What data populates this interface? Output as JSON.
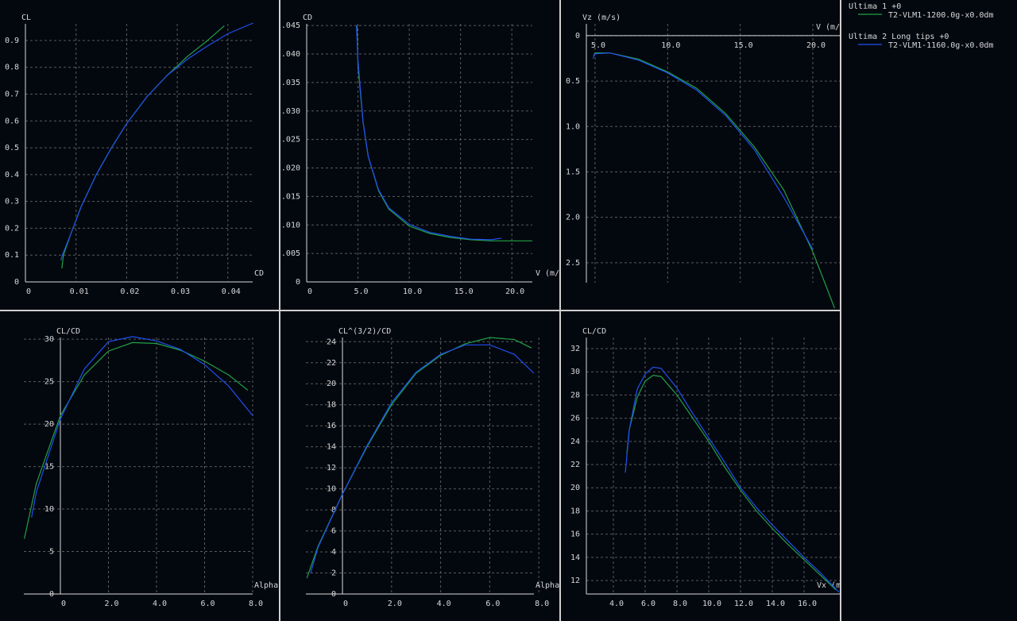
{
  "chart_data": [
    {
      "type": "line",
      "y_label": "CL",
      "x_label": "CD",
      "xlim": [
        0,
        0.0449
      ],
      "ylim": [
        0,
        0.962
      ],
      "xticks": [
        0,
        0.01,
        0.02,
        0.03,
        0.04
      ],
      "yticks": [
        0,
        0.1,
        0.2,
        0.3,
        0.4,
        0.5,
        0.6,
        0.7,
        0.8,
        0.9
      ],
      "grid": true,
      "series": [
        {
          "color": "#22a045",
          "x": [
            0.0072,
            0.0075,
            0.009,
            0.011,
            0.014,
            0.017,
            0.02,
            0.024,
            0.028,
            0.032,
            0.036,
            0.0393
          ],
          "values": [
            0.05,
            0.1,
            0.18,
            0.28,
            0.4,
            0.5,
            0.59,
            0.69,
            0.77,
            0.84,
            0.9,
            0.955
          ]
        },
        {
          "color": "#2050f0",
          "x": [
            0.007,
            0.0073,
            0.009,
            0.011,
            0.014,
            0.017,
            0.02,
            0.024,
            0.028,
            0.032,
            0.036,
            0.04,
            0.045
          ],
          "values": [
            0.08,
            0.1,
            0.18,
            0.28,
            0.4,
            0.5,
            0.59,
            0.69,
            0.77,
            0.83,
            0.88,
            0.925,
            0.965
          ]
        }
      ]
    },
    {
      "type": "line",
      "y_label": "CD",
      "x_label": "V (m/",
      "xlim": [
        0,
        22
      ],
      "ylim": [
        0,
        0.0453
      ],
      "xticks": [
        0,
        {
          "value": 5,
          "label": "5.0"
        },
        {
          "value": 10,
          "label": "10.0"
        },
        {
          "value": 15,
          "label": "15.0"
        },
        {
          "value": 20,
          "label": "20.0"
        }
      ],
      "yticks": [
        0,
        {
          "value": 0.005,
          "label": ".005"
        },
        {
          "value": 0.01,
          "label": ".010"
        },
        {
          "value": 0.015,
          "label": ".015"
        },
        {
          "value": 0.02,
          "label": ".020"
        },
        {
          "value": 0.025,
          "label": ".025"
        },
        {
          "value": 0.03,
          "label": ".030"
        },
        {
          "value": 0.035,
          "label": ".035"
        },
        {
          "value": 0.04,
          "label": ".040"
        },
        {
          "value": 0.045,
          "label": ".045"
        }
      ],
      "grid": true,
      "series": [
        {
          "color": "#22a045",
          "x": [
            4.9,
            5,
            5.5,
            6,
            7,
            8,
            10,
            12,
            14,
            16,
            18,
            20,
            22
          ],
          "values": [
            0.045,
            0.038,
            0.028,
            0.022,
            0.016,
            0.0128,
            0.0098,
            0.0085,
            0.0078,
            0.0074,
            0.0072,
            0.0072,
            0.0072
          ]
        },
        {
          "color": "#2050f0",
          "x": [
            4.85,
            5,
            5.5,
            6,
            7,
            8,
            10,
            12,
            14,
            16,
            18,
            19
          ],
          "values": [
            0.045,
            0.039,
            0.028,
            0.022,
            0.0162,
            0.013,
            0.0101,
            0.0087,
            0.008,
            0.0075,
            0.0074,
            0.0077
          ]
        }
      ]
    },
    {
      "type": "line",
      "y_label": "Vz (m/s)",
      "x_label": "V (m/",
      "xlim": [
        4.4,
        21.86
      ],
      "ylim": [
        2.72,
        -0.13
      ],
      "xticks": [
        {
          "value": 5,
          "label": "5.0"
        },
        {
          "value": 10,
          "label": "10.0"
        },
        {
          "value": 15,
          "label": "15.0"
        },
        {
          "value": 20,
          "label": "20.0"
        }
      ],
      "yticks": [
        0,
        0.5,
        {
          "value": 1,
          "label": "1.0"
        },
        1.5,
        {
          "value": 2,
          "label": "2.0"
        },
        2.5
      ],
      "grid": true,
      "series": [
        {
          "color": "#22a045",
          "x": [
            4.9,
            5,
            6,
            8,
            10,
            12,
            14,
            16,
            18,
            20,
            21.5
          ],
          "values": [
            0.22,
            0.19,
            0.19,
            0.26,
            0.4,
            0.58,
            0.86,
            1.23,
            1.7,
            2.38,
            3.0
          ]
        },
        {
          "color": "#2050f0",
          "x": [
            4.85,
            5,
            6,
            8,
            10,
            12,
            14,
            16,
            18,
            20
          ],
          "values": [
            0.25,
            0.2,
            0.19,
            0.27,
            0.41,
            0.6,
            0.88,
            1.26,
            1.78,
            2.35
          ]
        }
      ]
    },
    {
      "type": "line",
      "y_label": "CL/CD",
      "x_label": "Alpha",
      "xlim": [
        -1.52,
        8
      ],
      "ylim": [
        0,
        30.2
      ],
      "xticks": [
        0,
        {
          "value": 2,
          "label": "2.0"
        },
        {
          "value": 4,
          "label": "4.0"
        },
        {
          "value": 6,
          "label": "6.0"
        },
        {
          "value": 8,
          "label": "8.0"
        }
      ],
      "yticks": [
        0,
        5,
        10,
        15,
        20,
        25,
        30
      ],
      "grid": true,
      "series": [
        {
          "color": "#22a045",
          "x": [
            -1.5,
            -1,
            0,
            1,
            2,
            3,
            4,
            5,
            6,
            7,
            7.8
          ],
          "values": [
            6.5,
            13,
            21,
            25.8,
            28.6,
            29.6,
            29.5,
            28.7,
            27.4,
            25.8,
            24
          ]
        },
        {
          "color": "#2050f0",
          "x": [
            -1.2,
            -1,
            0,
            1,
            2,
            3,
            4,
            5,
            6,
            7,
            8
          ],
          "values": [
            9,
            12,
            20.6,
            26.5,
            29.7,
            30.3,
            29.8,
            28.8,
            27,
            24.5,
            21
          ]
        }
      ]
    },
    {
      "type": "line",
      "y_label": "CL^(3/2)/CD",
      "x_label": "Alpha",
      "xlim": [
        -1.49,
        7.8
      ],
      "ylim": [
        0,
        24.4
      ],
      "xticks": [
        0,
        {
          "value": 2,
          "label": "2.0"
        },
        {
          "value": 4,
          "label": "4.0"
        },
        {
          "value": 6,
          "label": "6.0"
        },
        {
          "value": 8,
          "label": "8.0"
        }
      ],
      "yticks": [
        0,
        2,
        4,
        6,
        8,
        10,
        12,
        14,
        16,
        18,
        20,
        22,
        24
      ],
      "grid": true,
      "series": [
        {
          "color": "#22a045",
          "x": [
            -1.45,
            -1,
            0,
            1,
            2,
            3,
            4,
            5,
            6,
            7,
            7.7
          ],
          "values": [
            1.5,
            4.5,
            9.5,
            14,
            18,
            21,
            22.7,
            23.8,
            24.4,
            24.2,
            23.4
          ]
        },
        {
          "color": "#2050f0",
          "x": [
            -1.3,
            -1,
            0,
            1,
            2,
            3,
            4,
            5,
            6,
            7,
            7.8
          ],
          "values": [
            2,
            4.4,
            9.5,
            14.1,
            18.2,
            21.1,
            22.8,
            23.7,
            23.7,
            22.8,
            21
          ]
        }
      ]
    },
    {
      "type": "line",
      "y_label": "CL/CD",
      "x_label": "Vx (m",
      "xlim": [
        2.3,
        18.25
      ],
      "ylim": [
        10.84,
        32.96
      ],
      "xticks": [
        {
          "value": 4,
          "label": "4.0"
        },
        {
          "value": 6,
          "label": "6.0"
        },
        {
          "value": 8,
          "label": "8.0"
        },
        {
          "value": 10,
          "label": "10.0"
        },
        {
          "value": 12,
          "label": "12.0"
        },
        {
          "value": 14,
          "label": "14.0"
        },
        {
          "value": 16,
          "label": "16.0"
        }
      ],
      "yticks": [
        12,
        14,
        16,
        18,
        20,
        22,
        24,
        26,
        28,
        30,
        32
      ],
      "grid": true,
      "series": [
        {
          "color": "#22a045",
          "x": [
            4.85,
            5,
            5.5,
            6,
            6.5,
            7,
            8,
            9,
            10,
            11,
            12,
            13,
            14,
            15,
            16,
            17,
            18
          ],
          "values": [
            23,
            25,
            27.8,
            29.2,
            29.7,
            29.6,
            28,
            26,
            24,
            21.8,
            19.8,
            18,
            16.5,
            15.1,
            13.8,
            12.5,
            11.2
          ]
        },
        {
          "color": "#2050f0",
          "x": [
            4.75,
            5,
            5.5,
            6,
            6.5,
            7,
            8,
            9,
            10,
            11,
            12,
            13,
            14,
            15,
            16,
            17,
            18.2
          ],
          "values": [
            21.3,
            25,
            28.5,
            29.8,
            30.4,
            30.3,
            28.6,
            26.4,
            24.3,
            22.2,
            20,
            18.3,
            16.8,
            15.4,
            14,
            12.7,
            11
          ]
        }
      ]
    }
  ],
  "legend": [
    {
      "title": "Ultima 1 +0",
      "name": "T2-VLM1-1200.0g-x0.0dm",
      "color": "#22a045"
    },
    {
      "title": "Ultima 2 Long tips +0",
      "name": "T2-VLM1-1160.0g-x0.0dm",
      "color": "#2050f0"
    }
  ]
}
